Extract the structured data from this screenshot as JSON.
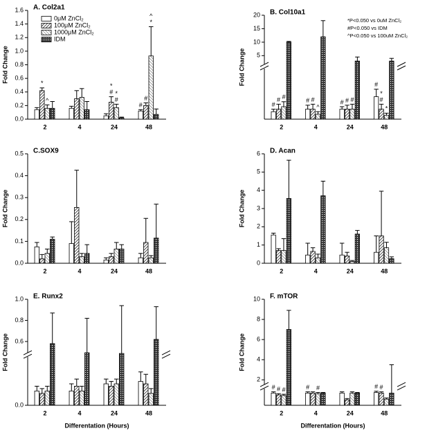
{
  "chart_data": [
    {
      "type": "bar",
      "title": "A. Col2a1",
      "y_label": "Fold Change",
      "categories": [
        "2",
        "4",
        "24",
        "48"
      ],
      "ylim": [
        0,
        1.6
      ],
      "yticks": [
        {
          "value": 0,
          "label": "0.0"
        },
        0.2,
        0.4,
        0.6,
        0.8,
        {
          "value": 1,
          "label": "1.0"
        },
        1.2,
        1.4,
        1.6
      ],
      "series": [
        {
          "name": "0μM ZnCl₂",
          "pattern": "none",
          "values": [
            0.14,
            0.16,
            0.05,
            0.12
          ],
          "errors": [
            0.03,
            0.03,
            0.03,
            0.02
          ],
          "annotations": [
            null,
            null,
            null,
            [
              "#"
            ]
          ]
        },
        {
          "name": "100μM ZnCl₂",
          "pattern": "hatch",
          "values": [
            0.42,
            0.3,
            0.25,
            0.2
          ],
          "errors": [
            0.04,
            0.12,
            0.08,
            0.04
          ],
          "annotations": [
            [
              "*"
            ],
            null,
            [
              "*",
              "#"
            ],
            [
              "#"
            ]
          ]
        },
        {
          "name": "1000μM  ZnCl₂",
          "pattern": "light",
          "values": [
            0.16,
            0.32,
            0.17,
            0.93
          ],
          "errors": [
            0.05,
            0.13,
            0.05,
            0.43
          ],
          "annotations": [
            [
              "^"
            ],
            null,
            [
              "*",
              "#"
            ],
            [
              "^",
              "*"
            ]
          ]
        },
        {
          "name": "IDM",
          "pattern": "cross",
          "values": [
            0.16,
            0.14,
            0.02,
            0.07
          ],
          "errors": [
            0.1,
            0.12,
            0.01,
            0.08
          ]
        }
      ]
    },
    {
      "type": "bar",
      "title": "B. Col10a1",
      "y_label": "Fold Change",
      "categories": [
        "2",
        "4",
        "24",
        "48"
      ],
      "ylim": [
        0,
        20
      ],
      "ybreak": [
        1,
        2
      ],
      "yticks": [
        5,
        10,
        15,
        20
      ],
      "notes": [
        "*P<0.050 vs 0uM ZnCl₂",
        "#P<0.050 vs IDM",
        "^P<0.050 vs 100uM ZnCl₂"
      ],
      "series": [
        {
          "pattern": "none",
          "values": [
            0.15,
            0.2,
            0.2,
            0.45
          ],
          "errors": [
            0.05,
            0.08,
            0.05,
            0.15
          ],
          "annotations": [
            [
              "#"
            ],
            [
              "#"
            ],
            [
              "#"
            ],
            [
              "#"
            ]
          ]
        },
        {
          "pattern": "hatch",
          "values": [
            0.2,
            0.2,
            0.2,
            0.2
          ],
          "errors": [
            0.1,
            0.1,
            0.08,
            0.1
          ],
          "annotations": [
            [
              "#"
            ],
            [
              "#"
            ],
            [
              "#"
            ],
            [
              "*",
              "#"
            ]
          ]
        },
        {
          "pattern": "light",
          "values": [
            0.25,
            0.1,
            0.2,
            0.08
          ],
          "errors": [
            0.1,
            0.05,
            0.1,
            0.04
          ],
          "annotations": [
            [
              "#"
            ],
            [
              "^"
            ],
            [
              "#"
            ],
            [
              "*"
            ]
          ]
        },
        {
          "pattern": "cross",
          "values": [
            10,
            12,
            3,
            3
          ],
          "errors": [
            0.3,
            6,
            1.5,
            1
          ]
        }
      ]
    },
    {
      "type": "bar",
      "title": "C.SOX9",
      "y_label": "Fold Change",
      "categories": [
        "2",
        "4",
        "24",
        "48"
      ],
      "ylim": [
        0,
        0.5
      ],
      "yticks": [
        {
          "value": 0,
          "label": "0.0"
        },
        0.1,
        0.2,
        0.3,
        0.4,
        0.5
      ],
      "series": [
        {
          "pattern": "none",
          "values": [
            0.075,
            0.09,
            0.015,
            0.025
          ],
          "errors": [
            0.02,
            0.1,
            0.01,
            0.02
          ]
        },
        {
          "pattern": "hatch",
          "values": [
            0.02,
            0.255,
            0.03,
            0.095
          ],
          "errors": [
            0.02,
            0.17,
            0.015,
            0.11
          ]
        },
        {
          "pattern": "light",
          "values": [
            0.045,
            0.03,
            0.065,
            0.025
          ],
          "errors": [
            0.02,
            0.015,
            0.03,
            0.01
          ]
        },
        {
          "pattern": "cross",
          "values": [
            0.11,
            0.045,
            0.065,
            0.115
          ],
          "errors": [
            0.01,
            0.04,
            0.02,
            0.155
          ]
        }
      ]
    },
    {
      "type": "bar",
      "title": "D. Acan",
      "y_label": "Fold Change",
      "categories": [
        "2",
        "4",
        "24",
        "48"
      ],
      "ylim": [
        0,
        6
      ],
      "yticks": [
        0,
        1,
        2,
        3,
        4,
        5,
        6
      ],
      "series": [
        {
          "pattern": "none",
          "values": [
            1.55,
            0.45,
            0.45,
            0.6
          ],
          "errors": [
            0.1,
            0.65,
            0.65,
            0.9
          ]
        },
        {
          "pattern": "hatch",
          "values": [
            0.7,
            0.65,
            0.4,
            1.5
          ],
          "errors": [
            0.1,
            0.2,
            0.2,
            2.45
          ]
        },
        {
          "pattern": "light",
          "values": [
            0.7,
            0.3,
            0.1,
            0.85
          ],
          "errors": [
            0.65,
            0.2,
            0.05,
            0.3
          ]
        },
        {
          "pattern": "cross",
          "values": [
            3.55,
            3.7,
            1.6,
            0.25
          ],
          "errors": [
            2.1,
            0.8,
            0.2,
            0.1
          ]
        }
      ]
    },
    {
      "type": "bar",
      "title": "E. Runx2",
      "y_label": "Fold Change",
      "x_label": "Differentation (Hours)",
      "categories": [
        "2",
        "4",
        "24",
        "48"
      ],
      "ylim": [
        0,
        1
      ],
      "ybreak": [
        0.1,
        0.5
      ],
      "yticks": [
        {
          "value": 0,
          "label": "0.0"
        },
        0.6,
        0.8,
        {
          "value": 1,
          "label": "1.0"
        }
      ],
      "series": [
        {
          "pattern": "none",
          "values": [
            0.03,
            0.03,
            0.045,
            0.05
          ],
          "errors": [
            0.01,
            0.015,
            0.01,
            0.02
          ]
        },
        {
          "pattern": "hatch",
          "values": [
            0.025,
            0.04,
            0.04,
            0.045
          ],
          "errors": [
            0.01,
            0.015,
            0.01,
            0.02
          ]
        },
        {
          "pattern": "light",
          "values": [
            0.03,
            0.03,
            0.045,
            0.025
          ],
          "errors": [
            0.01,
            0.01,
            0.01,
            0.01
          ]
        },
        {
          "pattern": "cross",
          "values": [
            0.58,
            0.45,
            0.4,
            0.62
          ],
          "errors": [
            0.29,
            0.37,
            0.54,
            0.31
          ]
        }
      ]
    },
    {
      "type": "bar",
      "title": "F. mTOR",
      "y_label": "Fold Change",
      "x_label": "Differentation (Hours)",
      "categories": [
        "2",
        "4",
        "24",
        "48"
      ],
      "ylim": [
        0,
        10
      ],
      "ybreak": [
        1.3,
        1.6
      ],
      "yticks": [
        2,
        4,
        6,
        8,
        10
      ],
      "series": [
        {
          "pattern": "none",
          "values": [
            1,
            1,
            1,
            1.05
          ],
          "errors": [
            0.1,
            0.1,
            0.1,
            0.1
          ],
          "annotations": [
            [
              "#"
            ],
            [
              "#"
            ],
            null,
            [
              "#"
            ]
          ]
        },
        {
          "pattern": "hatch",
          "values": [
            0.85,
            1,
            0.45,
            1
          ],
          "errors": [
            0.1,
            0.1,
            0.1,
            0.1
          ],
          "annotations": [
            [
              "#"
            ],
            null,
            null,
            [
              "#"
            ]
          ]
        },
        {
          "pattern": "light",
          "values": [
            0.8,
            0.95,
            1,
            0.5
          ],
          "errors": [
            0.1,
            0.1,
            0.1,
            0.1
          ],
          "annotations": [
            [
              "#"
            ],
            [
              "#"
            ],
            null,
            null
          ]
        },
        {
          "pattern": "cross",
          "values": [
            7,
            1,
            1,
            1
          ],
          "errors": [
            1.9,
            0.05,
            0.05,
            2.5
          ]
        }
      ]
    }
  ]
}
